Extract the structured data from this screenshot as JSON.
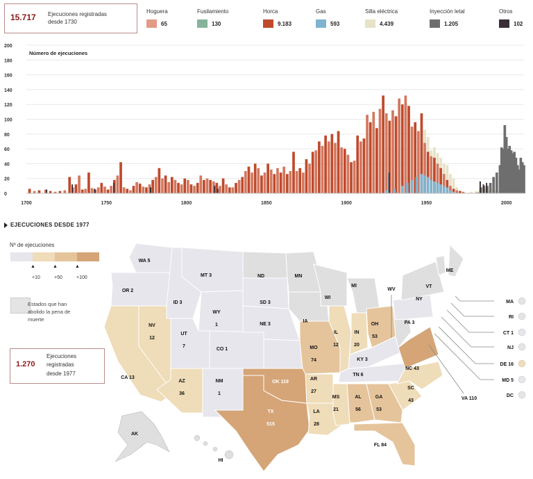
{
  "header": {
    "total_value": "15.717",
    "total_text_line1": "Ejecuciones registradas",
    "total_text_line2": "desde 1730"
  },
  "legend": [
    {
      "name": "Hoguera",
      "value": "65",
      "color": "#e39a86"
    },
    {
      "name": "Fusilamiento",
      "value": "130",
      "color": "#86b49b"
    },
    {
      "name": "Horca",
      "value": "9.183",
      "color": "#bf4a2c"
    },
    {
      "name": "Gas",
      "value": "593",
      "color": "#7fb3d0"
    },
    {
      "name": "Silla eléctrica",
      "value": "4.439",
      "color": "#e8e2c6"
    },
    {
      "name": "Inyección letal",
      "value": "1.205",
      "color": "#6e6e6e"
    },
    {
      "name": "Otros",
      "value": "102",
      "color": "#3a2f36"
    }
  ],
  "chart_data": {
    "type": "bar",
    "stacked": true,
    "title": "Número de ejecuciones",
    "xlabel": "",
    "ylabel": "Número de ejecuciones",
    "xlim": [
      1700,
      2011
    ],
    "ylim": [
      0,
      200
    ],
    "yticks": [
      0,
      20,
      40,
      60,
      80,
      100,
      120,
      140,
      160,
      180,
      200
    ],
    "xticks": [
      1700,
      1750,
      1800,
      1850,
      1900,
      1950,
      2000
    ],
    "grid": true,
    "series_order": [
      "Horca",
      "Gas",
      "Silla eléctrica",
      "Inyección letal",
      "Otros"
    ],
    "series": [
      {
        "name": "Horca",
        "color": "#bf4a2c",
        "color_alt": "#d2785f",
        "points": [
          [
            1702,
            6
          ],
          [
            1705,
            3
          ],
          [
            1708,
            4
          ],
          [
            1712,
            5
          ],
          [
            1715,
            3
          ],
          [
            1718,
            2
          ],
          [
            1721,
            3
          ],
          [
            1724,
            4
          ],
          [
            1727,
            22
          ],
          [
            1729,
            8
          ],
          [
            1731,
            12
          ],
          [
            1733,
            24
          ],
          [
            1735,
            5
          ],
          [
            1737,
            6
          ],
          [
            1739,
            28
          ],
          [
            1741,
            7
          ],
          [
            1743,
            5
          ],
          [
            1745,
            8
          ],
          [
            1747,
            14
          ],
          [
            1749,
            9
          ],
          [
            1751,
            5
          ],
          [
            1753,
            10
          ],
          [
            1755,
            18
          ],
          [
            1757,
            24
          ],
          [
            1759,
            42
          ],
          [
            1761,
            8
          ],
          [
            1763,
            6
          ],
          [
            1765,
            4
          ],
          [
            1767,
            10
          ],
          [
            1769,
            15
          ],
          [
            1771,
            13
          ],
          [
            1773,
            9
          ],
          [
            1775,
            8
          ],
          [
            1777,
            12
          ],
          [
            1779,
            18
          ],
          [
            1781,
            22
          ],
          [
            1783,
            34
          ],
          [
            1785,
            20
          ],
          [
            1787,
            24
          ],
          [
            1789,
            15
          ],
          [
            1791,
            22
          ],
          [
            1793,
            18
          ],
          [
            1795,
            14
          ],
          [
            1797,
            12
          ],
          [
            1799,
            20
          ],
          [
            1801,
            18
          ],
          [
            1803,
            12
          ],
          [
            1805,
            10
          ],
          [
            1807,
            14
          ],
          [
            1809,
            24
          ],
          [
            1811,
            18
          ],
          [
            1813,
            20
          ],
          [
            1815,
            18
          ],
          [
            1817,
            16
          ],
          [
            1819,
            14
          ],
          [
            1821,
            10
          ],
          [
            1823,
            20
          ],
          [
            1825,
            12
          ],
          [
            1827,
            8
          ],
          [
            1829,
            8
          ],
          [
            1831,
            14
          ],
          [
            1833,
            18
          ],
          [
            1835,
            22
          ],
          [
            1837,
            30
          ],
          [
            1839,
            36
          ],
          [
            1841,
            28
          ],
          [
            1843,
            40
          ],
          [
            1845,
            34
          ],
          [
            1847,
            24
          ],
          [
            1849,
            28
          ],
          [
            1851,
            40
          ],
          [
            1853,
            32
          ],
          [
            1855,
            26
          ],
          [
            1857,
            34
          ],
          [
            1859,
            28
          ],
          [
            1861,
            36
          ],
          [
            1863,
            26
          ],
          [
            1865,
            30
          ],
          [
            1867,
            56
          ],
          [
            1869,
            30
          ],
          [
            1871,
            34
          ],
          [
            1873,
            28
          ],
          [
            1875,
            46
          ],
          [
            1877,
            40
          ],
          [
            1879,
            56
          ],
          [
            1881,
            58
          ],
          [
            1883,
            70
          ],
          [
            1885,
            64
          ],
          [
            1887,
            78
          ],
          [
            1889,
            70
          ],
          [
            1891,
            80
          ],
          [
            1893,
            68
          ],
          [
            1895,
            84
          ],
          [
            1897,
            62
          ],
          [
            1899,
            60
          ],
          [
            1901,
            52
          ],
          [
            1903,
            42
          ],
          [
            1905,
            44
          ],
          [
            1907,
            78
          ],
          [
            1909,
            70
          ],
          [
            1911,
            74
          ],
          [
            1913,
            106
          ],
          [
            1915,
            96
          ],
          [
            1917,
            110
          ],
          [
            1919,
            88
          ],
          [
            1921,
            114
          ],
          [
            1923,
            132
          ],
          [
            1925,
            108
          ],
          [
            1927,
            98
          ],
          [
            1929,
            112
          ],
          [
            1931,
            104
          ],
          [
            1933,
            128
          ],
          [
            1935,
            120
          ],
          [
            1937,
            132
          ],
          [
            1939,
            118
          ],
          [
            1941,
            90
          ],
          [
            1943,
            96
          ],
          [
            1945,
            84
          ],
          [
            1947,
            108
          ],
          [
            1949,
            68
          ],
          [
            1951,
            56
          ],
          [
            1953,
            50
          ],
          [
            1955,
            48
          ],
          [
            1957,
            40
          ],
          [
            1959,
            34
          ],
          [
            1961,
            26
          ],
          [
            1963,
            18
          ],
          [
            1965,
            10
          ],
          [
            1967,
            6
          ],
          [
            1969,
            4
          ],
          [
            1971,
            3
          ],
          [
            1973,
            2
          ]
        ]
      },
      {
        "name": "Gas",
        "color": "#7fb3d0",
        "points": [
          [
            1925,
            4
          ],
          [
            1930,
            6
          ],
          [
            1935,
            10
          ],
          [
            1938,
            14
          ],
          [
            1941,
            18
          ],
          [
            1944,
            22
          ],
          [
            1947,
            26
          ],
          [
            1949,
            24
          ],
          [
            1951,
            22
          ],
          [
            1953,
            18
          ],
          [
            1955,
            16
          ],
          [
            1957,
            14
          ],
          [
            1959,
            12
          ],
          [
            1961,
            10
          ],
          [
            1963,
            8
          ],
          [
            1965,
            4
          ],
          [
            1967,
            2
          ]
        ]
      },
      {
        "name": "Silla eléctrica",
        "color": "#e8e2c6",
        "points": [
          [
            1891,
            2
          ],
          [
            1895,
            4
          ],
          [
            1899,
            8
          ],
          [
            1903,
            10
          ],
          [
            1907,
            14
          ],
          [
            1911,
            16
          ],
          [
            1915,
            24
          ],
          [
            1919,
            30
          ],
          [
            1923,
            40
          ],
          [
            1925,
            52
          ],
          [
            1927,
            40
          ],
          [
            1929,
            44
          ],
          [
            1931,
            60
          ],
          [
            1933,
            52
          ],
          [
            1935,
            62
          ],
          [
            1937,
            56
          ],
          [
            1939,
            70
          ],
          [
            1941,
            86
          ],
          [
            1943,
            92
          ],
          [
            1945,
            78
          ],
          [
            1947,
            74
          ],
          [
            1949,
            86
          ],
          [
            1951,
            76
          ],
          [
            1953,
            58
          ],
          [
            1955,
            62
          ],
          [
            1957,
            54
          ],
          [
            1959,
            48
          ],
          [
            1961,
            40
          ],
          [
            1963,
            38
          ],
          [
            1965,
            26
          ],
          [
            1967,
            20
          ],
          [
            1969,
            8
          ],
          [
            1971,
            4
          ],
          [
            1978,
            2
          ],
          [
            1981,
            3
          ],
          [
            1983,
            4
          ],
          [
            1985,
            8
          ],
          [
            1987,
            6
          ],
          [
            1989,
            4
          ],
          [
            1991,
            6
          ],
          [
            1993,
            4
          ],
          [
            1995,
            3
          ],
          [
            1997,
            2
          ],
          [
            1999,
            3
          ],
          [
            2001,
            2
          ],
          [
            2003,
            1
          ],
          [
            2005,
            2
          ],
          [
            2007,
            1
          ],
          [
            2009,
            1
          ]
        ]
      },
      {
        "name": "Inyección letal",
        "color": "#6e6e6e",
        "points": [
          [
            1982,
            1
          ],
          [
            1984,
            8
          ],
          [
            1986,
            10
          ],
          [
            1988,
            10
          ],
          [
            1990,
            14
          ],
          [
            1992,
            22
          ],
          [
            1994,
            28
          ],
          [
            1996,
            38
          ],
          [
            1997,
            62
          ],
          [
            1998,
            60
          ],
          [
            1999,
            92
          ],
          [
            2000,
            76
          ],
          [
            2001,
            60
          ],
          [
            2002,
            64
          ],
          [
            2003,
            58
          ],
          [
            2004,
            54
          ],
          [
            2005,
            56
          ],
          [
            2006,
            48
          ],
          [
            2007,
            38
          ],
          [
            2008,
            32
          ],
          [
            2009,
            48
          ],
          [
            2010,
            42
          ],
          [
            2011,
            38
          ]
        ]
      },
      {
        "name": "Otros",
        "color": "#3a2f36",
        "points": [
          [
            1713,
            5
          ],
          [
            1729,
            12
          ],
          [
            1743,
            6
          ],
          [
            1755,
            14
          ],
          [
            1778,
            8
          ],
          [
            1820,
            6
          ],
          [
            1818,
            10
          ],
          [
            1927,
            28
          ],
          [
            1984,
            16
          ],
          [
            1986,
            12
          ],
          [
            1988,
            14
          ]
        ]
      }
    ]
  },
  "map": {
    "section_title": "EJECUCIONES DESDE 1977",
    "legend_title": "Nº de ejecuciones",
    "scale_colors": [
      "#e6e6ec",
      "#efdcb8",
      "#e5c49c",
      "#d5a577"
    ],
    "scale_labels": [
      "+10",
      "+50",
      "+100"
    ],
    "abolished_text": "Estados que han abolido la pena de muerte",
    "abolished_color": "#e4e4e4",
    "total_value": "1.270",
    "total_text_line1": "Ejecuciones",
    "total_text_line2": "registradas",
    "total_text_line3": "desde 1977",
    "states": [
      {
        "abbr": "WA",
        "value": "5"
      },
      {
        "abbr": "OR",
        "value": "2"
      },
      {
        "abbr": "CA",
        "value": "13"
      },
      {
        "abbr": "NV",
        "value": "12"
      },
      {
        "abbr": "ID",
        "value": "3"
      },
      {
        "abbr": "MT",
        "value": "3"
      },
      {
        "abbr": "WY",
        "value": "1"
      },
      {
        "abbr": "UT",
        "value": "7"
      },
      {
        "abbr": "CO",
        "value": "1"
      },
      {
        "abbr": "AZ",
        "value": "36"
      },
      {
        "abbr": "NM",
        "value": "1"
      },
      {
        "abbr": "ND",
        "value": ""
      },
      {
        "abbr": "SD",
        "value": "3"
      },
      {
        "abbr": "NE",
        "value": "3"
      },
      {
        "abbr": "MN",
        "value": ""
      },
      {
        "abbr": "IA",
        "value": ""
      },
      {
        "abbr": "MO",
        "value": "74"
      },
      {
        "abbr": "OK",
        "value": "119"
      },
      {
        "abbr": "TX",
        "value": "515"
      },
      {
        "abbr": "AR",
        "value": "27"
      },
      {
        "abbr": "LA",
        "value": "28"
      },
      {
        "abbr": "WI",
        "value": ""
      },
      {
        "abbr": "MI",
        "value": ""
      },
      {
        "abbr": "IL",
        "value": "12"
      },
      {
        "abbr": "IN",
        "value": "20"
      },
      {
        "abbr": "OH",
        "value": "53"
      },
      {
        "abbr": "KY",
        "value": "3"
      },
      {
        "abbr": "TN",
        "value": "6"
      },
      {
        "abbr": "MS",
        "value": "21"
      },
      {
        "abbr": "AL",
        "value": "56"
      },
      {
        "abbr": "GA",
        "value": "53"
      },
      {
        "abbr": "FL",
        "value": "84"
      },
      {
        "abbr": "SC",
        "value": "43"
      },
      {
        "abbr": "NC",
        "value": "43"
      },
      {
        "abbr": "VA",
        "value": "110"
      },
      {
        "abbr": "WV",
        "value": ""
      },
      {
        "abbr": "PA",
        "value": "3"
      },
      {
        "abbr": "NY",
        "value": ""
      },
      {
        "abbr": "VT",
        "value": ""
      },
      {
        "abbr": "ME",
        "value": ""
      },
      {
        "abbr": "AK",
        "value": ""
      },
      {
        "abbr": "HI",
        "value": ""
      }
    ],
    "northeast_callouts": [
      {
        "label": "MA",
        "color": "#e4e4e4"
      },
      {
        "label": "RI",
        "color": "#e4e4e4"
      },
      {
        "label": "CT 1",
        "color": "#e6e6ec"
      },
      {
        "label": "NJ",
        "color": "#e4e4e4"
      },
      {
        "label": "DE 16",
        "color": "#efdcb8"
      },
      {
        "label": "MD 5",
        "color": "#e6e6ec"
      },
      {
        "label": "DC",
        "color": "#e4e4e4"
      }
    ],
    "va_label": "VA 110"
  }
}
